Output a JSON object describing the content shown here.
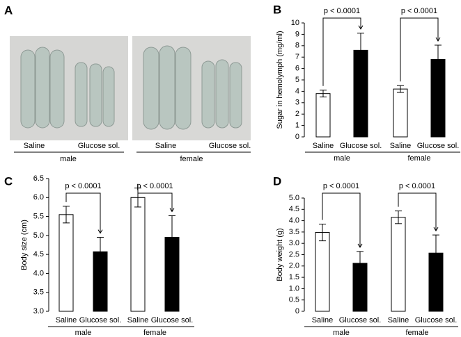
{
  "photo_panel": {
    "label": "A",
    "categories": [
      "Saline",
      "Glucose sol.",
      "Saline",
      "Glucose sol."
    ],
    "groups": [
      "male",
      "female"
    ]
  },
  "chart_data": [
    {
      "type": "bar",
      "label": "B",
      "ylabel": "Sugar in hemolymph (mg/ml)",
      "categories": [
        "Saline",
        "Glucose sol.",
        "Saline",
        "Glucose sol."
      ],
      "groups": [
        "male",
        "female"
      ],
      "values": [
        3.8,
        7.6,
        4.2,
        6.8
      ],
      "errors": [
        0.3,
        1.5,
        0.3,
        1.25
      ],
      "colors": [
        "#ffffff",
        "#000000",
        "#ffffff",
        "#000000"
      ],
      "annotations": [
        "p < 0.0001",
        "p < 0.0001"
      ],
      "ylim": [
        0,
        10
      ],
      "yticks": [
        0,
        1,
        2,
        3,
        4,
        5,
        6,
        7,
        8,
        9,
        10
      ]
    },
    {
      "type": "bar",
      "label": "C",
      "ylabel": "Body size (cm)",
      "categories": [
        "Saline",
        "Glucose sol.",
        "Saline",
        "Glucose sol."
      ],
      "groups": [
        "male",
        "female"
      ],
      "values": [
        5.55,
        4.57,
        6.0,
        4.95
      ],
      "errors": [
        0.22,
        0.38,
        0.25,
        0.57
      ],
      "colors": [
        "#ffffff",
        "#000000",
        "#ffffff",
        "#000000"
      ],
      "annotations": [
        "p < 0.0001",
        "p < 0.0001"
      ],
      "ylim": [
        3,
        6.5
      ],
      "yticks": [
        {
          "value": 3,
          "label": "3.0"
        },
        3.5,
        {
          "value": 4,
          "label": "4.0"
        },
        4.5,
        {
          "value": 5,
          "label": "5.0"
        },
        5.5,
        {
          "value": 6,
          "label": "6.0"
        },
        6.5
      ]
    },
    {
      "type": "bar",
      "label": "D",
      "ylabel": "Body weight (g)",
      "categories": [
        "Saline",
        "Glucose sol.",
        "Saline",
        "Glucose sol."
      ],
      "groups": [
        "male",
        "female"
      ],
      "values": [
        3.48,
        2.12,
        4.15,
        2.57
      ],
      "errors": [
        0.37,
        0.52,
        0.28,
        0.8
      ],
      "colors": [
        "#ffffff",
        "#000000",
        "#ffffff",
        "#000000"
      ],
      "annotations": [
        "p < 0.0001",
        "p < 0.0001"
      ],
      "ylim": [
        0,
        5
      ],
      "yticks": [
        0,
        0.5,
        {
          "value": 1,
          "label": "1.0"
        },
        1.5,
        {
          "value": 2,
          "label": "2.0"
        },
        2.5,
        {
          "value": 3,
          "label": "3.0"
        },
        3.5,
        {
          "value": 4,
          "label": "4.0"
        },
        4.5,
        {
          "value": 5,
          "label": "5.0"
        }
      ]
    }
  ]
}
